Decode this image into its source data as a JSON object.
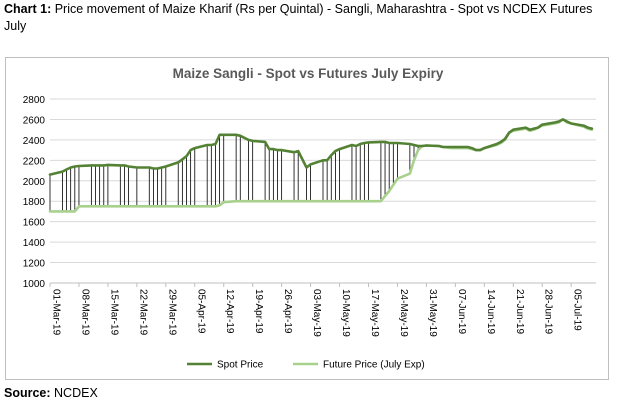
{
  "caption": {
    "label": "Chart 1:",
    "text": "Price movement of Maize Kharif (Rs per Quintal) - Sangli, Maharashtra - Spot vs NCDEX Futures July"
  },
  "source": {
    "label": "Source:",
    "text": "NCDEX"
  },
  "colors": {
    "spot": "#548235",
    "futures": "#a9d18e",
    "grid": "#d9d9d9",
    "droplines": "#000000"
  },
  "chart_data": {
    "type": "line",
    "title": "Maize Sangli - Spot vs Futures July Expiry",
    "xlabel": "",
    "ylabel": "",
    "ylim": [
      1000,
      2800
    ],
    "yticks": [
      1000,
      1200,
      1400,
      1600,
      1800,
      2000,
      2200,
      2400,
      2600,
      2800
    ],
    "grid": true,
    "legend": "bottom",
    "drop_lines": true,
    "x": [
      "2019-03-01",
      "2019-03-04",
      "2019-03-05",
      "2019-03-06",
      "2019-03-07",
      "2019-03-08",
      "2019-03-11",
      "2019-03-12",
      "2019-03-13",
      "2019-03-14",
      "2019-03-15",
      "2019-03-18",
      "2019-03-19",
      "2019-03-20",
      "2019-03-22",
      "2019-03-25",
      "2019-03-26",
      "2019-03-27",
      "2019-03-28",
      "2019-03-29",
      "2019-04-01",
      "2019-04-02",
      "2019-04-03",
      "2019-04-04",
      "2019-04-05",
      "2019-04-08",
      "2019-04-09",
      "2019-04-10",
      "2019-04-11",
      "2019-04-12",
      "2019-04-15",
      "2019-04-16",
      "2019-04-18",
      "2019-04-19",
      "2019-04-22",
      "2019-04-23",
      "2019-04-24",
      "2019-04-25",
      "2019-04-26",
      "2019-04-29",
      "2019-04-30",
      "2019-05-02",
      "2019-05-03",
      "2019-05-06",
      "2019-05-07",
      "2019-05-08",
      "2019-05-09",
      "2019-05-10",
      "2019-05-13",
      "2019-05-14",
      "2019-05-15",
      "2019-05-16",
      "2019-05-17",
      "2019-05-20",
      "2019-05-21",
      "2019-05-22",
      "2019-05-23",
      "2019-05-24",
      "2019-05-27",
      "2019-05-28",
      "2019-05-29",
      "2019-05-30",
      "2019-05-31",
      "2019-06-03",
      "2019-06-04",
      "2019-06-06",
      "2019-06-07",
      "2019-06-10",
      "2019-06-11",
      "2019-06-12",
      "2019-06-13",
      "2019-06-14",
      "2019-06-17",
      "2019-06-18",
      "2019-06-19",
      "2019-06-20",
      "2019-06-21",
      "2019-06-24",
      "2019-06-25",
      "2019-06-26",
      "2019-06-27",
      "2019-06-28",
      "2019-07-01",
      "2019-07-02",
      "2019-07-03",
      "2019-07-04",
      "2019-07-05",
      "2019-07-08",
      "2019-07-09",
      "2019-07-10"
    ],
    "xtick_labels": [
      "01-Mar-19",
      "08-Mar-19",
      "15-Mar-19",
      "22-Mar-19",
      "29-Mar-19",
      "05-Apr-19",
      "12-Apr-19",
      "19-Apr-19",
      "26-Apr-19",
      "03-May-19",
      "10-May-19",
      "17-May-19",
      "24-May-19",
      "31-May-19",
      "07-Jun-19",
      "14-Jun-19",
      "21-Jun-19",
      "28-Jun-19",
      "05-Jul-19"
    ],
    "series": [
      {
        "name": "Spot Price",
        "values": [
          2060,
          2090,
          2110,
          2130,
          2140,
          2145,
          2150,
          2150,
          2150,
          2150,
          2155,
          2150,
          2150,
          2140,
          2130,
          2130,
          2120,
          2120,
          2130,
          2140,
          2180,
          2210,
          2240,
          2300,
          2320,
          2350,
          2350,
          2360,
          2450,
          2450,
          2450,
          2440,
          2400,
          2390,
          2380,
          2310,
          2310,
          2300,
          2300,
          2280,
          2290,
          2130,
          2160,
          2200,
          2200,
          2250,
          2290,
          2310,
          2350,
          2340,
          2360,
          2370,
          2375,
          2380,
          2380,
          2370,
          2370,
          2370,
          2360,
          2350,
          2340,
          2340,
          2345,
          2340,
          2330,
          2330,
          2330,
          2330,
          2320,
          2300,
          2300,
          2320,
          2360,
          2380,
          2410,
          2470,
          2500,
          2520,
          2500,
          2510,
          2520,
          2550,
          2570,
          2580,
          2600,
          2580,
          2560,
          2540,
          2520,
          2510
        ]
      },
      {
        "name": "Future Price (July Exp)",
        "values": [
          1700,
          1700,
          1700,
          1700,
          1700,
          1750,
          1750,
          1750,
          1750,
          1750,
          1750,
          1750,
          1750,
          1750,
          1750,
          1750,
          1750,
          1750,
          1750,
          1750,
          1750,
          1750,
          1750,
          1750,
          1750,
          1750,
          1750,
          1750,
          1760,
          1790,
          1800,
          1800,
          1800,
          1800,
          1800,
          1800,
          1800,
          1800,
          1800,
          1800,
          1800,
          1800,
          1800,
          1800,
          1800,
          1800,
          1800,
          1800,
          1800,
          1800,
          1800,
          1800,
          1800,
          1800,
          1850,
          1900,
          1960,
          2020,
          2070,
          2200,
          2300,
          2340,
          2345,
          2340,
          2330,
          2320,
          2320,
          2320,
          2310,
          2300,
          2300,
          2320,
          2350,
          2370,
          2400,
          2470,
          2490,
          2510,
          2490,
          2500,
          2520,
          2540,
          2560,
          2570,
          2600,
          2570,
          2560,
          2530,
          2510,
          2500
        ]
      }
    ]
  }
}
